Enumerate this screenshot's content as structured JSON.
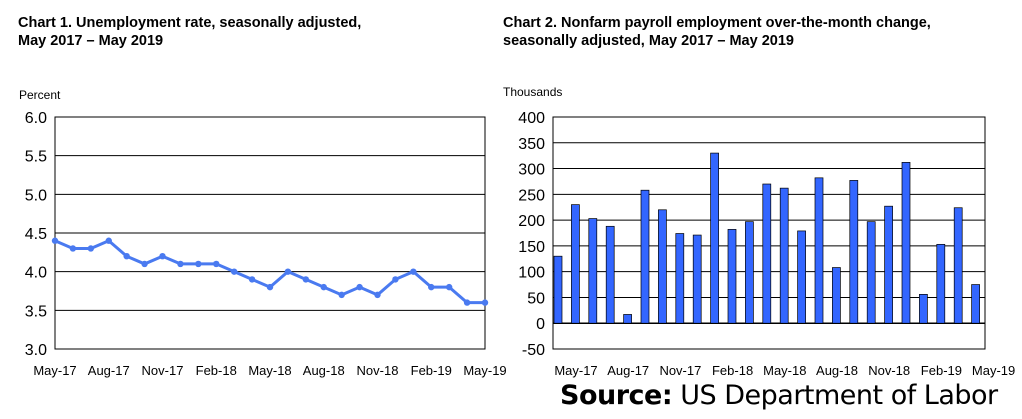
{
  "source": {
    "label": "Source:",
    "text": "US Department of Labor"
  },
  "chart_data": [
    {
      "type": "line",
      "title_line1": "Chart 1. Unemployment rate, seasonally adjusted,",
      "title_line2": "May 2017 – May 2019",
      "ylabel": "Percent",
      "ylim": [
        3.0,
        6.0
      ],
      "yticks": [
        "3.0",
        "3.5",
        "4.0",
        "4.5",
        "5.0",
        "5.5",
        "6.0"
      ],
      "xtick_labels": [
        "May-17",
        "Aug-17",
        "Nov-17",
        "Feb-18",
        "May-18",
        "Aug-18",
        "Nov-18",
        "Feb-19",
        "May-19"
      ],
      "grid": true,
      "color": "#4a7af0",
      "x": [
        "May-17",
        "Jun-17",
        "Jul-17",
        "Aug-17",
        "Sep-17",
        "Oct-17",
        "Nov-17",
        "Dec-17",
        "Jan-18",
        "Feb-18",
        "Mar-18",
        "Apr-18",
        "May-18",
        "Jun-18",
        "Jul-18",
        "Aug-18",
        "Sep-18",
        "Oct-18",
        "Nov-18",
        "Dec-18",
        "Jan-19",
        "Feb-19",
        "Mar-19",
        "Apr-19",
        "May-19"
      ],
      "values": [
        4.4,
        4.3,
        4.3,
        4.4,
        4.2,
        4.1,
        4.2,
        4.1,
        4.1,
        4.1,
        4.0,
        3.9,
        3.8,
        4.0,
        3.9,
        3.8,
        3.7,
        3.8,
        3.7,
        3.9,
        4.0,
        3.8,
        3.8,
        3.6,
        3.6
      ]
    },
    {
      "type": "bar",
      "title_line1": "Chart 2. Nonfarm payroll employment over-the-month change,",
      "title_line2": "seasonally adjusted, May 2017 – May 2019",
      "ylabel": "Thousands",
      "ylim": [
        -50,
        400
      ],
      "yticks": [
        "-50",
        "0",
        "50",
        "100",
        "150",
        "200",
        "250",
        "300",
        "350",
        "400"
      ],
      "xtick_labels": [
        "May-17",
        "Aug-17",
        "Nov-17",
        "Feb-18",
        "May-18",
        "Aug-18",
        "Nov-18",
        "Feb-19",
        "May-19"
      ],
      "grid": true,
      "color": "#3366ff",
      "x": [
        "May-17",
        "Jun-17",
        "Jul-17",
        "Aug-17",
        "Sep-17",
        "Oct-17",
        "Nov-17",
        "Dec-17",
        "Jan-18",
        "Feb-18",
        "Mar-18",
        "Apr-18",
        "May-18",
        "Jun-18",
        "Jul-18",
        "Aug-18",
        "Sep-18",
        "Oct-18",
        "Nov-18",
        "Dec-18",
        "Jan-19",
        "Feb-19",
        "Mar-19",
        "Apr-19",
        "May-19"
      ],
      "values": [
        130,
        230,
        203,
        188,
        17,
        258,
        220,
        174,
        171,
        330,
        182,
        197,
        270,
        262,
        179,
        282,
        108,
        277,
        197,
        227,
        312,
        56,
        153,
        224,
        75
      ]
    }
  ]
}
